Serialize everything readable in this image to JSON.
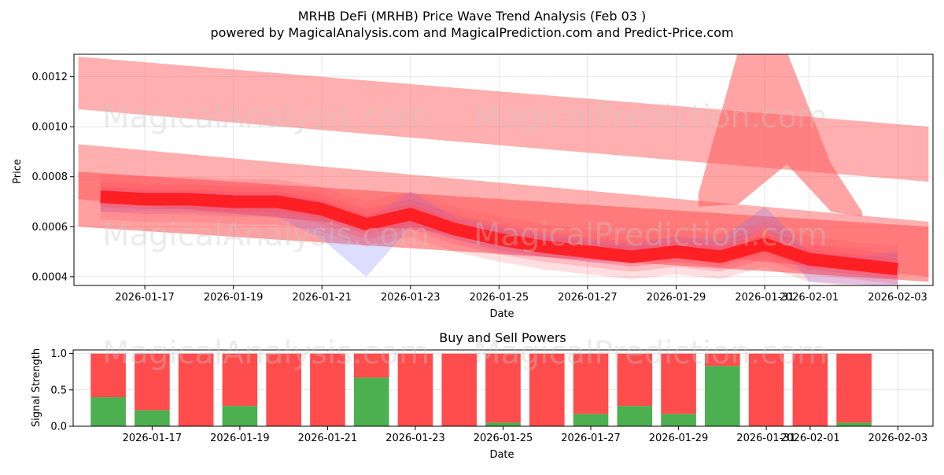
{
  "chart_data": [
    {
      "type": "area",
      "title": "MRHB DeFi (MRHB) Price Wave Trend Analysis (Feb 03 )",
      "subtitle": "powered by MagicalAnalysis.com and MagicalPrediction.com and Predict-Price.com",
      "xlabel": "Date",
      "ylabel": "Price",
      "ylim": [
        0.000365,
        0.00129
      ],
      "yticks": [
        0.0004,
        0.0006,
        0.0008,
        0.001,
        0.0012
      ],
      "ytick_labels": [
        "0.0004",
        "0.0006",
        "0.0008",
        "0.0010",
        "0.0012"
      ],
      "xtick_labels": [
        "2026-01-17",
        "2026-01-19",
        "2026-01-21",
        "2026-01-23",
        "2026-01-25",
        "2026-01-27",
        "2026-01-29",
        "2026-01-31",
        "2026-02-01",
        "2026-02-03"
      ],
      "xtick_index": [
        1,
        3,
        5,
        7,
        9,
        11,
        13,
        15,
        16,
        18
      ],
      "x_range": [
        -0.6,
        18.8
      ],
      "dates": [
        "2026-01-16",
        "2026-01-17",
        "2026-01-18",
        "2026-01-19",
        "2026-01-20",
        "2026-01-21",
        "2026-01-22",
        "2026-01-23",
        "2026-01-24",
        "2026-01-25",
        "2026-01-26",
        "2026-01-27",
        "2026-01-28",
        "2026-01-29",
        "2026-01-30",
        "2026-01-31",
        "2026-02-01",
        "2026-02-02",
        "2026-02-03"
      ],
      "series": [
        {
          "name": "upper channel",
          "x0": -0.5,
          "x1": 18.7,
          "low": [
            0.00107,
            0.00078
          ],
          "high": [
            0.00128,
            0.001
          ]
        },
        {
          "name": "middle channel",
          "x0": -0.5,
          "x1": 18.7,
          "low": [
            0.00071,
            0.0004
          ],
          "high": [
            0.00093,
            0.00062
          ]
        },
        {
          "name": "lower channel",
          "x0": -0.5,
          "x1": 18.7,
          "low": [
            0.0006,
            0.00038
          ],
          "high": [
            0.00082,
            0.0006
          ]
        },
        {
          "name": "spike band",
          "x": [
            13.5,
            14.4,
            15.5,
            16.5,
            17.2
          ],
          "low": [
            0.00068,
            0.00069,
            0.00085,
            0.00066,
            0.00064
          ],
          "high": [
            0.00073,
            0.0013,
            0.0013,
            0.00085,
            0.00066
          ]
        },
        {
          "name": "blue wave",
          "low": [
            0.00066,
            0.00066,
            0.00066,
            0.00065,
            0.00064,
            0.00055,
            0.0004,
            0.0006,
            0.00055,
            0.0005,
            0.00048,
            0.00046,
            0.00045,
            0.00048,
            0.00047,
            0.0006,
            0.00038,
            0.00037,
            0.00036
          ],
          "high": [
            0.00075,
            0.00074,
            0.00074,
            0.00073,
            0.00073,
            0.0007,
            0.00062,
            0.00074,
            0.00064,
            0.0006,
            0.00057,
            0.00055,
            0.00053,
            0.00056,
            0.00055,
            0.00068,
            0.0005,
            0.00048,
            0.0005
          ]
        },
        {
          "name": "trend",
          "values": [
            0.00072,
            0.00071,
            0.00071,
            0.0007,
            0.0007,
            0.00067,
            0.00061,
            0.00065,
            0.00059,
            0.00055,
            0.00052,
            0.0005,
            0.00048,
            0.0005,
            0.00048,
            0.00053,
            0.00047,
            0.00045,
            0.00043
          ]
        }
      ]
    },
    {
      "type": "bar",
      "title": "Buy and Sell Powers",
      "xlabel": "Date",
      "ylabel": "Signal Strength",
      "ylim": [
        0,
        1.05
      ],
      "yticks": [
        0.0,
        0.5,
        1.0
      ],
      "ytick_labels": [
        "0.0",
        "0.5",
        "1.0"
      ],
      "xtick_labels": [
        "2026-01-17",
        "2026-01-19",
        "2026-01-21",
        "2026-01-23",
        "2026-01-25",
        "2026-01-27",
        "2026-01-29",
        "2026-01-31",
        "2026-02-01",
        "2026-02-03"
      ],
      "xtick_index": [
        1,
        3,
        5,
        7,
        9,
        11,
        13,
        15,
        16,
        18
      ],
      "x_range": [
        -0.8,
        18.8
      ],
      "categories": [
        "2026-01-16",
        "2026-01-17",
        "2026-01-18",
        "2026-01-19",
        "2026-01-20",
        "2026-01-21",
        "2026-01-22",
        "2026-01-23",
        "2026-01-24",
        "2026-01-25",
        "2026-01-26",
        "2026-01-27",
        "2026-01-28",
        "2026-01-29",
        "2026-01-30",
        "2026-01-31",
        "2026-02-01",
        "2026-02-02",
        "2026-02-03"
      ],
      "series": [
        {
          "name": "Buy",
          "color": "#4caf50",
          "values": [
            0.4,
            0.22,
            0.0,
            0.28,
            0.0,
            0.0,
            0.67,
            0.0,
            0.0,
            0.05,
            0.0,
            0.17,
            0.28,
            0.17,
            0.83,
            0.0,
            0.0,
            0.05,
            null
          ]
        },
        {
          "name": "Sell",
          "color": "#ff4c4c",
          "values": [
            0.6,
            0.78,
            1.0,
            0.72,
            1.0,
            1.0,
            0.33,
            1.0,
            1.0,
            0.95,
            1.0,
            0.83,
            0.72,
            0.83,
            0.17,
            1.0,
            1.0,
            0.95,
            null
          ]
        }
      ]
    }
  ],
  "watermarks": [
    "MagicalAnalysis.com",
    "MagicalPrediction.com"
  ]
}
